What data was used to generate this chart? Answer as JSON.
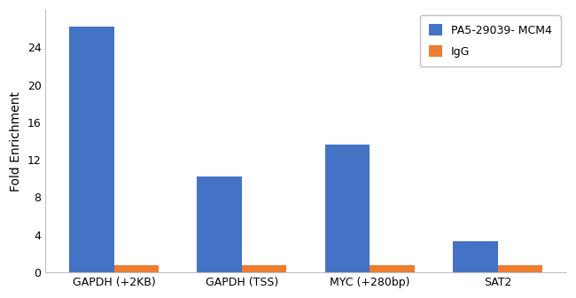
{
  "categories": [
    "GAPDH (+2KB)",
    "GAPDH (TSS)",
    "MYC (+280bp)",
    "SAT2"
  ],
  "mcm4_values": [
    26.2,
    10.2,
    13.6,
    3.3
  ],
  "igg_values": [
    0.8,
    0.75,
    0.75,
    0.72
  ],
  "mcm4_color": "#4472C4",
  "igg_color": "#ED7D31",
  "ylabel": "Fold Enrichment",
  "ylim": [
    0,
    28
  ],
  "yticks": [
    0,
    4,
    8,
    12,
    16,
    20,
    24
  ],
  "legend_mcm4": "PA5-29039- MCM4",
  "legend_igg": "IgG",
  "bar_width": 0.35,
  "title_fontsize": 11,
  "axis_fontsize": 10,
  "tick_fontsize": 9,
  "legend_fontsize": 9,
  "background_color": "#ffffff",
  "border_color": "#c0c0c0"
}
